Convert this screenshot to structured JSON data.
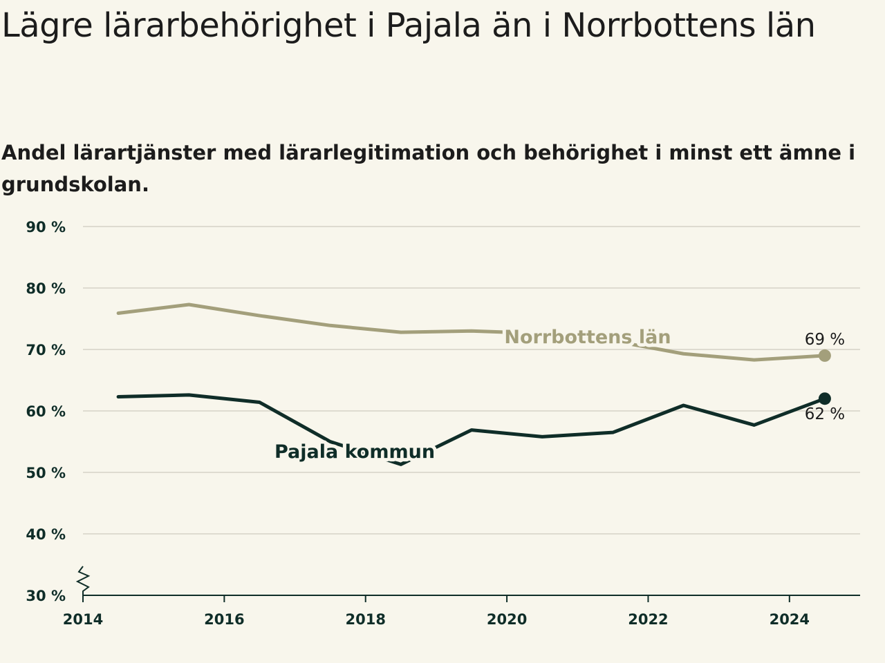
{
  "title": "Lägre lärarbehörighet i Pajala än i Norrbottens län",
  "subtitle": "Andel lärartjänster med lärarlegitimation och behörighet i minst ett ämne i grundskolan.",
  "chart_data": {
    "type": "line",
    "x": [
      2014.5,
      2015.5,
      2016.5,
      2017.5,
      2018.5,
      2019.5,
      2020.5,
      2021.5,
      2022.5,
      2023.5,
      2024.5
    ],
    "series": [
      {
        "name": "Norrbottens län",
        "values": [
          75.9,
          77.3,
          75.5,
          73.9,
          72.8,
          73.0,
          72.6,
          71.4,
          69.3,
          68.3,
          69.0
        ],
        "end_label": "69 %",
        "color": "#a39f7b"
      },
      {
        "name": "Pajala kommun",
        "values": [
          62.3,
          62.6,
          61.4,
          55.0,
          51.3,
          56.9,
          55.8,
          56.5,
          60.9,
          57.7,
          62.0
        ],
        "end_label": "62 %",
        "color": "#0f2d28"
      }
    ],
    "xlim": [
      2014,
      2025
    ],
    "ylim": [
      30,
      90
    ],
    "x_ticks": [
      2014,
      2016,
      2018,
      2020,
      2022,
      2024
    ],
    "x_tick_labels": [
      "2014",
      "2016",
      "2018",
      "2020",
      "2022",
      "2024"
    ],
    "y_ticks": [
      30,
      40,
      50,
      60,
      70,
      80,
      90
    ],
    "y_tick_labels": [
      "30 %",
      "40 %",
      "50 %",
      "60 %",
      "70 %",
      "80 %",
      "90 %"
    ],
    "grid": true,
    "axis_break": true,
    "colors": {
      "background": "#f8f6ec",
      "grid": "#dedbd0",
      "axis": "#0f2d28"
    }
  }
}
